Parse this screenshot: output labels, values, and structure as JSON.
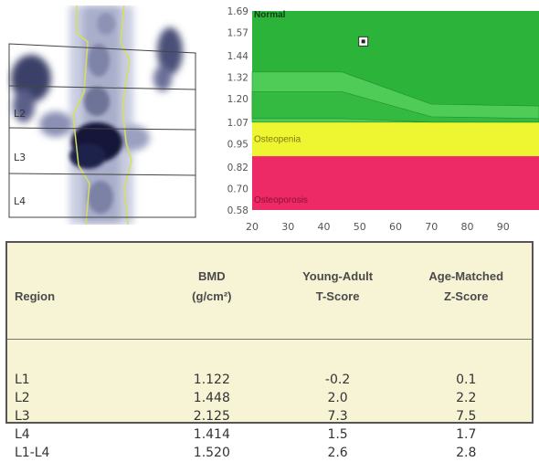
{
  "scan": {
    "vertebra_labels": [
      "L2",
      "L3",
      "L4"
    ]
  },
  "chart_data": {
    "type": "area",
    "title": "",
    "xlabel": "",
    "ylabel": "",
    "x_ticks": [
      20,
      30,
      40,
      50,
      60,
      70,
      80,
      90
    ],
    "y_ticks": [
      "0.58",
      "0.70",
      "0.82",
      "0.95",
      "1.07",
      "1.20",
      "1.32",
      "1.44",
      "1.57",
      "1.69"
    ],
    "xlim": [
      20,
      100
    ],
    "ylim": [
      0.58,
      1.69
    ],
    "zones": [
      {
        "label": "Normal",
        "from": 1.07,
        "to": 1.69,
        "color": "#2bb33a"
      },
      {
        "label": "Osteopenia",
        "from": 0.88,
        "to": 1.07,
        "color": "#eef531"
      },
      {
        "label": "Osteoporosis",
        "from": 0.58,
        "to": 0.88,
        "color": "#ee2a66"
      }
    ],
    "reference_bands": [
      {
        "name": "band-outer",
        "x": [
          20,
          45,
          70,
          100
        ],
        "upper": [
          1.35,
          1.35,
          1.17,
          1.16
        ],
        "lower": [
          1.07,
          1.07,
          1.07,
          1.07
        ],
        "color": "#4fcc57"
      },
      {
        "name": "band-inner",
        "x": [
          20,
          45,
          70,
          100
        ],
        "upper": [
          1.24,
          1.24,
          1.1,
          1.09
        ],
        "lower": [
          1.09,
          1.09,
          1.07,
          1.07
        ],
        "color": "#34ba40"
      }
    ],
    "points": [
      {
        "x": 51,
        "y": 1.52
      }
    ]
  },
  "table": {
    "headers": [
      {
        "line1": "",
        "line2": "Region"
      },
      {
        "line1": "BMD",
        "line2": "(g/cm²)"
      },
      {
        "line1": "Young-Adult",
        "line2": "T-Score"
      },
      {
        "line1": "Age-Matched",
        "line2": "Z-Score"
      }
    ],
    "rows": [
      [
        "L1",
        "1.122",
        "-0.2",
        "0.1"
      ],
      [
        "L2",
        "1.448",
        "2.0",
        "2.2"
      ],
      [
        "L3",
        "2.125",
        "7.3",
        "7.5"
      ],
      [
        "L4",
        "1.414",
        "1.5",
        "1.7"
      ],
      [
        "L1-L4",
        "1.520",
        "2.6",
        "2.8"
      ]
    ]
  }
}
